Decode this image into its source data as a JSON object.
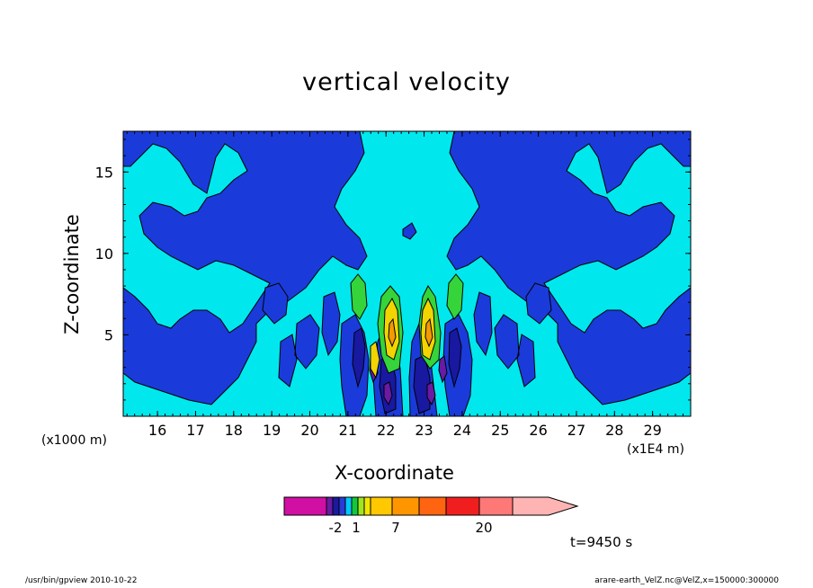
{
  "chart_data": {
    "type": "heatmap",
    "title": "vertical velocity",
    "xlabel": "X-coordinate",
    "ylabel": "Z-coordinate",
    "x_unit_left": "(x1000 m)",
    "x_unit_right": "(x1E4 m)",
    "x_ticks": [
      "16",
      "17",
      "18",
      "19",
      "20",
      "21",
      "22",
      "23",
      "24",
      "25",
      "26",
      "27",
      "28",
      "29"
    ],
    "y_ticks": [
      "5",
      "10",
      "15"
    ],
    "xlim": [
      15.1,
      30
    ],
    "ylim": [
      0,
      17.5
    ],
    "time_label": "t=9450 s",
    "colorbar": {
      "labels": [
        "-2",
        "1",
        "7",
        "20"
      ],
      "colors": [
        "#d10fa3",
        "#6a1aa3",
        "#1a1aa0",
        "#2b3bd8",
        "#00c8ff",
        "#12c83c",
        "#9fe61e",
        "#f2e600",
        "#ffc800",
        "#ff9600",
        "#ff6410",
        "#f01e1e",
        "#ff7878",
        "#ffb4b4"
      ]
    },
    "palette": {
      "background": "#00e8ee",
      "blue": "#1a3bd9",
      "dark_blue": "#1818a0",
      "purple": "#6a1aa3",
      "green": "#34d43a",
      "yellow": "#f2d400",
      "orange": "#f49a00"
    }
  },
  "footer": {
    "left": "/usr/bin/gpview   2010-10-22",
    "right": "arare-earth_VelZ.nc@VelZ,x=150000:300000"
  }
}
